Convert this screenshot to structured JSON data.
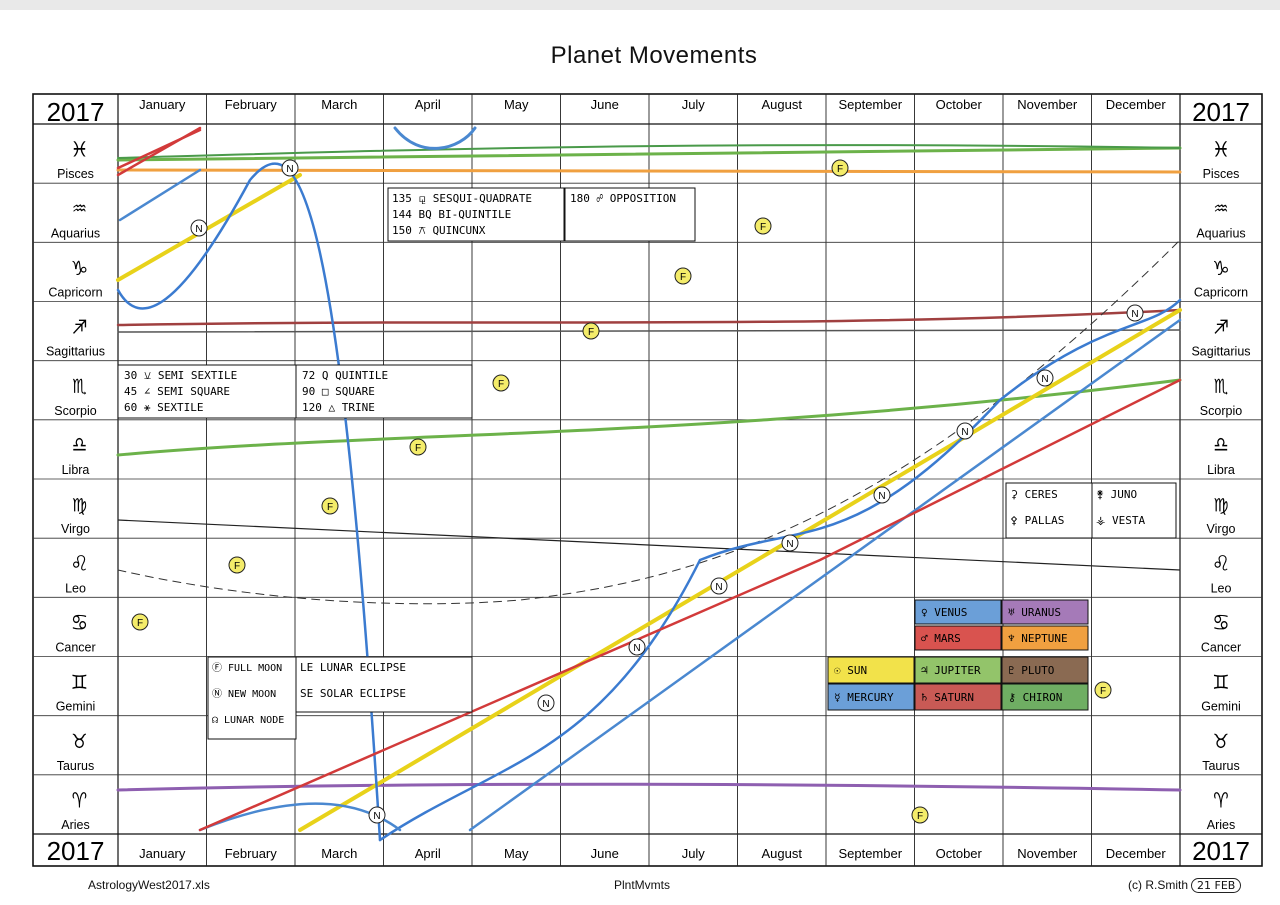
{
  "title": "Planet Movements",
  "year": "2017",
  "months": [
    "January",
    "February",
    "March",
    "April",
    "May",
    "June",
    "July",
    "August",
    "September",
    "October",
    "November",
    "December"
  ],
  "signs": [
    {
      "name": "Pisces",
      "glyph": "♓"
    },
    {
      "name": "Aquarius",
      "glyph": "♒"
    },
    {
      "name": "Capricorn",
      "glyph": "♑"
    },
    {
      "name": "Sagittarius",
      "glyph": "♐"
    },
    {
      "name": "Scorpio",
      "glyph": "♏"
    },
    {
      "name": "Libra",
      "glyph": "♎"
    },
    {
      "name": "Virgo",
      "glyph": "♍"
    },
    {
      "name": "Leo",
      "glyph": "♌"
    },
    {
      "name": "Cancer",
      "glyph": "♋"
    },
    {
      "name": "Gemini",
      "glyph": "♊"
    },
    {
      "name": "Taurus",
      "glyph": "♉"
    },
    {
      "name": "Aries",
      "glyph": "♈"
    }
  ],
  "aspect_legend_1": [
    "30 ⚺ SEMI SEXTILE",
    "45 ∠ SEMI SQUARE",
    "60 ⚹ SEXTILE"
  ],
  "aspect_legend_2": [
    "72 Q QUINTILE",
    "90 □ SQUARE",
    "120 △ TRINE"
  ],
  "aspect_legend_3": [
    "135 ⚼ SESQUI-QUADRATE",
    "144 BQ BI-QUINTILE",
    "150 ⚻ QUINCUNX"
  ],
  "aspect_legend_4": [
    "180 ☍ OPPOSITION"
  ],
  "moon_legend": [
    "Ⓕ FULL MOON",
    "Ⓝ NEW MOON",
    "☊ LUNAR NODE"
  ],
  "eclipse_legend": [
    "LE LUNAR ECLIPSE",
    "SE SOLAR ECLIPSE"
  ],
  "asteroid_legend": [
    "⚳ CERES",
    "⚴ PALLAS",
    "⚵ JUNO",
    "⚶ VESTA"
  ],
  "planet_legend": [
    {
      "label": "☉ SUN",
      "color": "#f2e24a"
    },
    {
      "label": "♃ JUPITER",
      "color": "#93c46a"
    },
    {
      "label": "♇ PLUTO",
      "color": "#8a6a52"
    },
    {
      "label": "☿ MERCURY",
      "color": "#6b9fd8"
    },
    {
      "label": "♄ SATURN",
      "color": "#c95a55"
    },
    {
      "label": "⚷ CHIRON",
      "color": "#6fae63"
    }
  ],
  "planet_legend_top": [
    {
      "label": "♀ VENUS",
      "color": "#6b9fd8"
    },
    {
      "label": "♅ URANUS",
      "color": "#a57ab8"
    },
    {
      "label": "♂ MARS",
      "color": "#d9534f"
    },
    {
      "label": "♆ NEPTUNE",
      "color": "#f0a040"
    }
  ],
  "footer": {
    "left": "AstrologyWest2017.xls",
    "middle": "PlntMvmts",
    "right": "(c) R.Smith",
    "stamp": "21 FEB"
  },
  "colors": {
    "sun": "#e8d21a",
    "mercury": "#3b7bd0",
    "venus": "#4a88d0",
    "mars": "#d23a3a",
    "jupiter": "#6cb24a",
    "saturn": "#a04040",
    "uranus": "#8e5fb0",
    "neptune": "#f0a040",
    "pluto": "#8a6a52",
    "chiron": "#4a9a4a"
  }
}
